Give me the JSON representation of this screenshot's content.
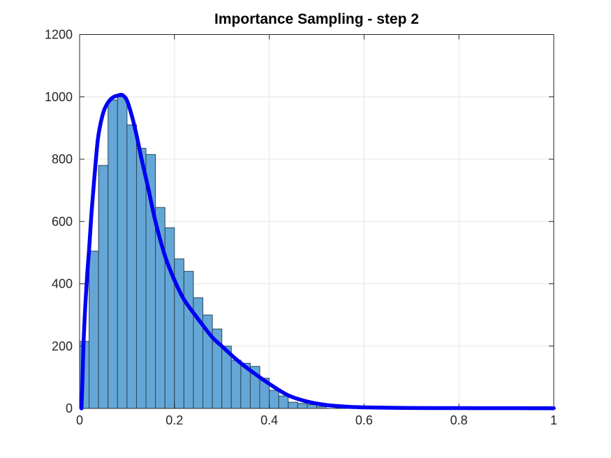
{
  "chart_data": {
    "type": "bar",
    "subtype": "histogram-with-line-overlay",
    "title": "Importance Sampling - step 2",
    "xlabel": "",
    "ylabel": "",
    "xlim": [
      0,
      1
    ],
    "ylim": [
      0,
      1200
    ],
    "xticks": [
      0,
      0.2,
      0.4,
      0.6,
      0.8,
      1
    ],
    "xtick_labels": [
      "0",
      "0.2",
      "0.4",
      "0.6",
      "0.8",
      "1"
    ],
    "yticks": [
      0,
      200,
      400,
      600,
      800,
      1000,
      1200
    ],
    "ytick_labels": [
      "0",
      "200",
      "400",
      "600",
      "800",
      "1000",
      "1200"
    ],
    "grid": true,
    "box": true,
    "legend": null,
    "histogram": {
      "name": "sample-histogram",
      "bin_start": 0,
      "bin_width": 0.02,
      "counts": [
        215,
        505,
        780,
        990,
        1000,
        910,
        835,
        815,
        645,
        580,
        480,
        440,
        355,
        300,
        255,
        200,
        155,
        145,
        135,
        97,
        58,
        40,
        20,
        16,
        12,
        6
      ]
    },
    "line": {
      "name": "target-density-curve",
      "x": [
        0.004,
        0.006,
        0.008,
        0.012,
        0.016,
        0.02,
        0.025,
        0.03,
        0.035,
        0.04,
        0.05,
        0.06,
        0.07,
        0.08,
        0.09,
        0.1,
        0.11,
        0.12,
        0.13,
        0.145,
        0.16,
        0.18,
        0.2,
        0.22,
        0.25,
        0.28,
        0.3,
        0.33,
        0.36,
        0.4,
        0.44,
        0.48,
        0.52,
        0.56,
        0.6,
        0.7,
        0.8,
        0.9,
        1.0
      ],
      "y": [
        0,
        90,
        200,
        330,
        430,
        510,
        625,
        720,
        810,
        880,
        950,
        982,
        998,
        1004,
        1006,
        988,
        940,
        878,
        805,
        705,
        600,
        490,
        412,
        350,
        287,
        228,
        200,
        158,
        122,
        79,
        42,
        22,
        11,
        6,
        3.5,
        1.5,
        1.0,
        0.8,
        0.6
      ]
    },
    "colors": {
      "bar_fill": "#64A7D6",
      "bar_edge": "#2A4459",
      "line": "#0000F2",
      "grid": "#E6E6E6",
      "axis": "#262626",
      "tick_label": "#262626",
      "title": "#000000",
      "background": "#FFFFFF"
    }
  }
}
